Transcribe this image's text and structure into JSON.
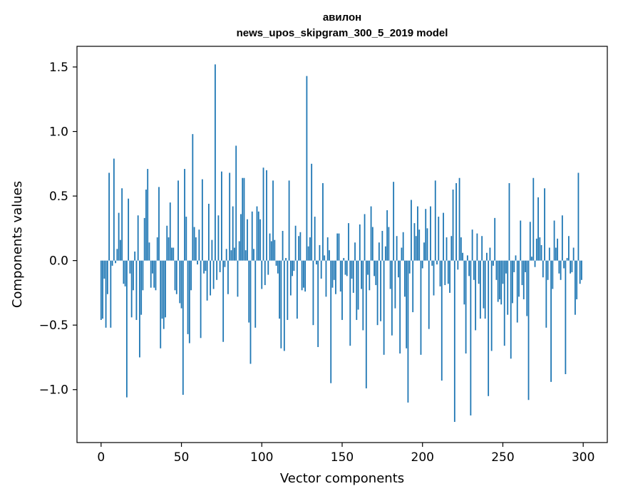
{
  "chart_data": {
    "type": "bar",
    "title": "авилон",
    "subtitle": "news_upos_skipgram_300_5_2019 model",
    "xlabel": "Vector components",
    "ylabel": "Components values",
    "xlim": [
      -15,
      315
    ],
    "ylim": [
      -1.41,
      1.66
    ],
    "xticks": [
      0,
      50,
      100,
      150,
      200,
      250,
      300
    ],
    "xtick_labels": [
      "0",
      "50",
      "100",
      "150",
      "200",
      "250",
      "300"
    ],
    "yticks": [
      -1.0,
      -0.5,
      0.0,
      0.5,
      1.0,
      1.5
    ],
    "ytick_labels": [
      "−1.0",
      "−0.5",
      "0.0",
      "0.5",
      "1.0",
      "1.5"
    ],
    "grid": false,
    "bar_color": "#1f77b4",
    "values": [
      -0.46,
      -0.45,
      -0.14,
      -0.52,
      -0.26,
      0.68,
      -0.52,
      -0.04,
      0.79,
      -0.02,
      0.09,
      0.37,
      0.16,
      0.56,
      -0.18,
      -0.2,
      -1.06,
      0.48,
      -0.1,
      -0.44,
      -0.23,
      0.07,
      -0.46,
      0.35,
      -0.75,
      -0.42,
      -0.23,
      0.33,
      0.55,
      0.71,
      0.14,
      -0.21,
      -0.1,
      -0.21,
      -0.23,
      0.18,
      0.57,
      -0.68,
      -0.45,
      -0.53,
      -0.44,
      0.27,
      0.18,
      0.45,
      0.1,
      0.1,
      -0.23,
      -0.26,
      0.62,
      -0.33,
      -0.37,
      -1.04,
      0.71,
      0.34,
      -0.57,
      -0.64,
      -0.23,
      0.98,
      0.26,
      0.18,
      -0.03,
      0.24,
      -0.6,
      0.63,
      -0.1,
      -0.08,
      -0.31,
      0.44,
      -0.27,
      0.16,
      -0.22,
      1.52,
      -0.15,
      0.35,
      -0.09,
      0.69,
      -0.63,
      -0.05,
      0.09,
      -0.26,
      0.68,
      0.08,
      0.42,
      0.1,
      0.89,
      -0.28,
      0.15,
      0.36,
      0.64,
      0.64,
      0.08,
      0.32,
      -0.48,
      -0.8,
      0.38,
      0.09,
      -0.52,
      0.42,
      0.38,
      0.32,
      -0.22,
      0.72,
      -0.19,
      0.7,
      -0.11,
      0.21,
      0.15,
      0.62,
      0.16,
      -0.04,
      -0.1,
      -0.45,
      -0.68,
      0.23,
      -0.7,
      0.02,
      -0.46,
      0.62,
      -0.27,
      -0.12,
      -0.08,
      0.27,
      -0.45,
      0.19,
      0.22,
      -0.23,
      -0.21,
      -0.24,
      1.43,
      0.11,
      0.18,
      0.75,
      -0.5,
      0.34,
      -0.03,
      -0.67,
      0.12,
      -0.14,
      0.6,
      0.04,
      -0.28,
      0.18,
      0.08,
      -0.95,
      -0.21,
      -0.15,
      -0.26,
      0.21,
      0.21,
      -0.24,
      -0.46,
      0.02,
      -0.11,
      -0.12,
      0.29,
      -0.66,
      -0.14,
      -0.25,
      0.14,
      -0.46,
      -0.38,
      0.28,
      -0.22,
      -0.54,
      0.36,
      -0.99,
      -0.11,
      -0.23,
      0.42,
      0.26,
      -0.12,
      -0.19,
      -0.5,
      0.14,
      -0.47,
      0.23,
      -0.73,
      0.11,
      0.39,
      0.26,
      -0.22,
      -0.58,
      0.61,
      -0.37,
      0.19,
      -0.13,
      -0.72,
      0.1,
      0.22,
      -0.28,
      -0.68,
      -1.1,
      -0.1,
      0.47,
      -0.4,
      0.29,
      0.19,
      0.42,
      0.24,
      -0.73,
      -0.06,
      0.14,
      0.4,
      0.25,
      -0.53,
      0.42,
      -0.04,
      -0.27,
      0.62,
      -0.03,
      0.34,
      -0.2,
      -0.93,
      0.37,
      -0.19,
      0.18,
      -0.18,
      -0.25,
      0.19,
      0.55,
      -1.25,
      0.6,
      -0.07,
      0.64,
      0.18,
      0.06,
      -0.34,
      -0.72,
      0.04,
      -0.12,
      -1.2,
      0.24,
      -0.15,
      -0.54,
      0.21,
      -0.18,
      -0.45,
      0.19,
      -0.37,
      -0.45,
      0.06,
      -1.05,
      0.1,
      -0.7,
      -0.04,
      0.33,
      -0.15,
      -0.32,
      -0.3,
      -0.34,
      -0.18,
      -0.66,
      -0.1,
      -0.42,
      0.6,
      -0.76,
      -0.33,
      -0.09,
      0.04,
      -0.48,
      -0.28,
      0.31,
      -0.19,
      -0.3,
      -0.09,
      -0.43,
      -1.08,
      0.3,
      0.03,
      0.64,
      -0.05,
      0.17,
      0.49,
      0.18,
      0.12,
      -0.13,
      0.56,
      -0.52,
      -0.15,
      0.1,
      -0.94,
      -0.22,
      0.31,
      0.1,
      0.17,
      -0.1,
      -0.15,
      0.35,
      -0.06,
      -0.88,
      0.02,
      0.19,
      -0.1,
      -0.09,
      0.1,
      -0.42,
      -0.3,
      0.68,
      -0.18,
      -0.15
    ]
  }
}
